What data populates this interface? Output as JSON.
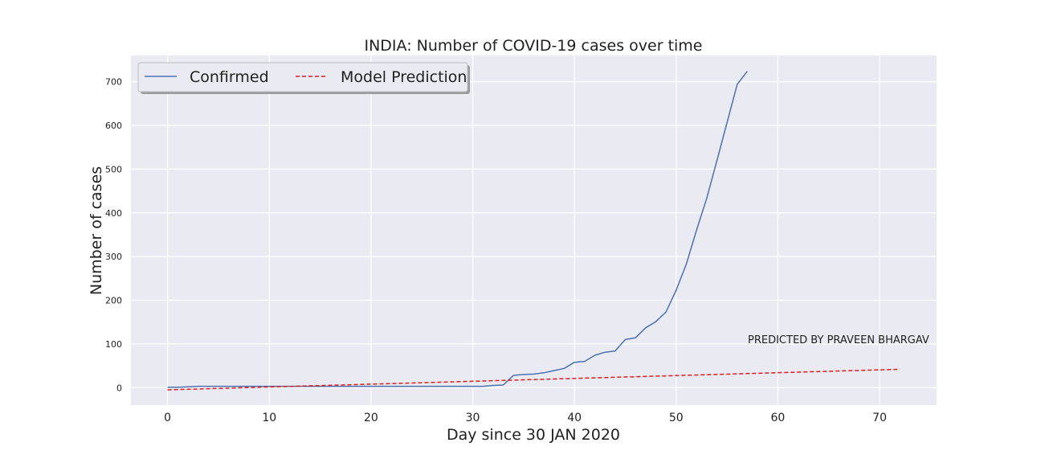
{
  "chart_data": {
    "type": "line",
    "title": "INDIA: Number of COVID-19 cases over time",
    "xlabel": "Day since 30 JAN 2020",
    "ylabel": "Number of cases",
    "xlim": [
      -3.6,
      75.6
    ],
    "ylim": [
      -40,
      760
    ],
    "xticks": [
      0,
      10,
      20,
      30,
      40,
      50,
      60,
      70
    ],
    "yticks": [
      0,
      100,
      200,
      300,
      400,
      500,
      600,
      700
    ],
    "grid": true,
    "legend_placement": "top-left",
    "annotation": "PREDICTED BY PRAVEEN BHARGAV",
    "series": [
      {
        "name": "Confirmed",
        "color": "#4c72b0",
        "style": "solid",
        "x": [
          0,
          1,
          2,
          3,
          4,
          5,
          6,
          7,
          8,
          9,
          10,
          11,
          12,
          13,
          14,
          15,
          16,
          17,
          18,
          19,
          20,
          21,
          22,
          23,
          24,
          25,
          26,
          27,
          28,
          29,
          30,
          31,
          32,
          33,
          34,
          35,
          36,
          37,
          38,
          39,
          40,
          41,
          42,
          43,
          44,
          45,
          46,
          47,
          48,
          49,
          50,
          51,
          52,
          53,
          54,
          55,
          56,
          57
        ],
        "y": [
          1,
          1,
          2,
          3,
          3,
          3,
          3,
          3,
          3,
          3,
          3,
          3,
          3,
          3,
          3,
          3,
          3,
          3,
          3,
          3,
          3,
          3,
          3,
          3,
          3,
          3,
          3,
          3,
          3,
          3,
          3,
          3,
          5,
          6,
          28,
          30,
          31,
          34,
          39,
          44,
          58,
          60,
          74,
          81,
          84,
          110,
          114,
          137,
          151,
          173,
          223,
          283,
          360,
          433,
          519,
          606,
          694,
          724
        ]
      },
      {
        "name": "Model Prediction",
        "color": "#e41a1c",
        "style": "dashed",
        "x": [
          0,
          72
        ],
        "y": [
          -5,
          42
        ]
      }
    ]
  }
}
